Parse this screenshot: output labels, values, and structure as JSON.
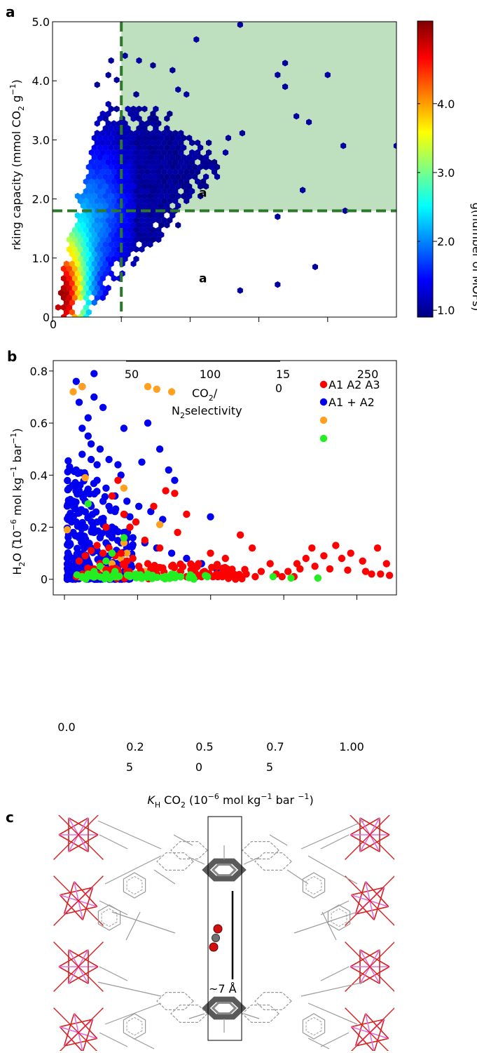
{
  "chart_data": [
    {
      "panel": "a",
      "type": "heatmap",
      "title": "",
      "xlabel": "",
      "ylabel": "rking capacity (mmol CO",
      "ylabel_sub": "2",
      "ylabel_unit": " g",
      "ylabel_sup": "−1",
      "ylabel_close": ")",
      "ylim": [
        0,
        5.0
      ],
      "xlim": [
        0,
        550
      ],
      "x_tick_labels": [
        {
          "x": 0,
          "label": "0"
        }
      ],
      "x_tick_positions": [
        0,
        110,
        220,
        330,
        440
      ],
      "y_tick_labels": [
        {
          "y": 0,
          "label": "0"
        },
        {
          "y": 1,
          "label": "1.0"
        },
        {
          "y": 2,
          "label": "2.0"
        },
        {
          "y": 3,
          "label": "3.0"
        },
        {
          "y": 4,
          "label": "4.0"
        },
        {
          "y": 5,
          "label": "5.0"
        }
      ],
      "threshold_x": 110,
      "threshold_y": 1.8,
      "shaded_region": {
        "x": [
          110,
          550
        ],
        "y": [
          1.8,
          5.0
        ],
        "color": "#bfe0bf"
      },
      "threshold_color": "#2a7a2a",
      "annotations": [
        {
          "text": "a",
          "x": 105,
          "y": 2.05
        },
        {
          "text": "a",
          "x": 105,
          "y": 0.6
        }
      ],
      "colorbar": {
        "label": "g(number of MOFs)",
        "range": [
          0.9,
          5.2
        ],
        "ticks": [
          {
            "value": 1.0,
            "label": "1.0"
          },
          {
            "value": 2.0,
            "label": "2.0"
          },
          {
            "value": 3.0,
            "label": "3.0"
          },
          {
            "value": 4.0,
            "label": "4.0"
          }
        ],
        "colors": [
          "#00007f",
          "#0000ff",
          "#0080ff",
          "#00ffff",
          "#80ff80",
          "#ffff00",
          "#ff8000",
          "#ff0000",
          "#7f0000"
        ]
      }
    },
    {
      "panel": "b",
      "type": "scatter",
      "title": "",
      "xlabel_italic": "K",
      "xlabel_sub": "H",
      "xlabel_rest": " CO",
      "xlabel_sub2": "2",
      "xlabel_unit": " (10",
      "xlabel_sup": "−6",
      "xlabel_tail": " mol kg",
      "xlabel_sup2": "−1",
      "xlabel_tail2": " bar ",
      "xlabel_sup3": "−1",
      "xlabel_close": ")",
      "ylabel_pre": "H",
      "ylabel_sub": "2",
      "ylabel_rest": "O (10",
      "ylabel_sup": "−6",
      "ylabel_tail": " mol kg",
      "ylabel_sup2": "−1",
      "ylabel_tail2": " bar",
      "ylabel_sup3": "−1",
      "ylabel_close": ")",
      "ylim": [
        -0.06,
        0.84
      ],
      "xlim": [
        -0.18,
        1.15
      ],
      "y_tick_labels": [
        {
          "y": 0,
          "label": "0"
        },
        {
          "y": 0.2,
          "label": "0.2"
        },
        {
          "y": 0.4,
          "label": "0.4"
        },
        {
          "y": 0.6,
          "label": "0.6"
        },
        {
          "y": 0.8,
          "label": "0.8"
        }
      ],
      "x_tick_positions": [
        0,
        0.25,
        0.5,
        0.75,
        1.0
      ],
      "x_tick_labels": [
        {
          "label": "0.0",
          "sub": ""
        },
        {
          "label": "0.2",
          "sub": "5"
        },
        {
          "label": "0.5",
          "sub": "0"
        },
        {
          "label": "0.7",
          "sub": "5"
        },
        {
          "label": "1.00",
          "sub": ""
        }
      ],
      "top_axis_labels": [
        {
          "label": "50",
          "sub": ""
        },
        {
          "label": "100",
          "sub": ""
        },
        {
          "label": "15",
          "sub": "0"
        },
        {
          "label": "250",
          "sub": ""
        }
      ],
      "top_axis_title": "CO",
      "top_axis_title_sub": "2",
      "top_axis_title_rest": "/",
      "top_axis_title2_pre": "N",
      "top_axis_title2_sub": "2",
      "top_axis_title2_rest": "selectivity",
      "series": [
        {
          "name": "A1 A2 A3",
          "color": "#ff0000",
          "points": [
            [
              0.82,
              0.12
            ],
            [
              0.9,
              0.13
            ],
            [
              1.04,
              0.12
            ],
            [
              0.95,
              0.1
            ],
            [
              0.86,
              0.09
            ],
            [
              0.92,
              0.08
            ],
            [
              0.99,
              0.07
            ],
            [
              1.07,
              0.06
            ],
            [
              0.8,
              0.08
            ],
            [
              0.77,
              0.06
            ],
            [
              0.83,
              0.05
            ],
            [
              0.88,
              0.04
            ],
            [
              0.94,
              0.035
            ],
            [
              1.0,
              0.03
            ],
            [
              1.05,
              0.02
            ],
            [
              1.08,
              0.015
            ],
            [
              0.78,
              0.04
            ],
            [
              0.74,
              0.03
            ],
            [
              0.7,
              0.02
            ],
            [
              0.65,
              0.03
            ],
            [
              0.6,
              0.02
            ],
            [
              0.55,
              0.03
            ],
            [
              0.5,
              0.02
            ],
            [
              0.46,
              0.03
            ],
            [
              0.42,
              0.02
            ],
            [
              0.38,
              0.03
            ],
            [
              0.35,
              0.05
            ],
            [
              0.3,
              0.04
            ],
            [
              0.27,
              0.06
            ],
            [
              0.24,
              0.05
            ],
            [
              0.22,
              0.08
            ],
            [
              0.2,
              0.07
            ],
            [
              0.18,
              0.1
            ],
            [
              0.16,
              0.09
            ],
            [
              0.14,
              0.12
            ],
            [
              0.12,
              0.1
            ],
            [
              0.1,
              0.13
            ],
            [
              0.08,
              0.11
            ],
            [
              0.06,
              0.09
            ],
            [
              0.04,
              0.07
            ],
            [
              0.17,
              0.38
            ],
            [
              0.15,
              0.32
            ],
            [
              0.13,
              0.2
            ],
            [
              0.33,
              0.34
            ],
            [
              0.36,
              0.33
            ],
            [
              0.4,
              0.25
            ],
            [
              0.23,
              0.22
            ],
            [
              0.26,
              0.15
            ],
            [
              0.31,
              0.12
            ],
            [
              0.37,
              0.18
            ],
            [
              0.48,
              0.1
            ],
            [
              0.58,
              0.17
            ],
            [
              0.62,
              0.12
            ],
            [
              0.68,
              0.06
            ],
            [
              0.53,
              0.08
            ],
            [
              0.44,
              0.06
            ],
            [
              0.21,
              0.2
            ],
            [
              0.19,
              0.25
            ],
            [
              0.29,
              0.28
            ],
            [
              0.11,
              0.06
            ],
            [
              0.09,
              0.04
            ],
            [
              0.07,
              0.03
            ],
            [
              0.05,
              0.02
            ],
            [
              0.03,
              0.01
            ],
            [
              0.15,
              0.04
            ],
            [
              0.2,
              0.03
            ],
            [
              0.25,
              0.02
            ],
            [
              0.3,
              0.02
            ],
            [
              0.35,
              0.01
            ],
            [
              0.4,
              0.01
            ],
            [
              0.45,
              0.01
            ],
            [
              0.52,
              0.01
            ],
            [
              0.57,
              0.01
            ],
            [
              0.63,
              0.01
            ],
            [
              0.72,
              0.01
            ],
            [
              0.76,
              0.01
            ],
            [
              1.02,
              0.02
            ]
          ]
        },
        {
          "name": "A1 + A2",
          "color": "#0000ee",
          "points": [
            [
              0.03,
              0.76
            ],
            [
              0.05,
              0.74
            ],
            [
              0.09,
              0.79
            ],
            [
              0.04,
              0.68
            ],
            [
              0.07,
              0.62
            ],
            [
              0.12,
              0.66
            ],
            [
              0.19,
              0.58
            ],
            [
              0.25,
              0.45
            ],
            [
              0.27,
              0.6
            ],
            [
              0.31,
              0.5
            ],
            [
              0.34,
              0.42
            ],
            [
              0.36,
              0.38
            ],
            [
              0.05,
              0.58
            ],
            [
              0.08,
              0.52
            ],
            [
              0.11,
              0.5
            ],
            [
              0.14,
              0.46
            ],
            [
              0.03,
              0.42
            ],
            [
              0.06,
              0.4
            ],
            [
              0.1,
              0.38
            ],
            [
              0.13,
              0.35
            ],
            [
              0.16,
              0.32
            ],
            [
              0.2,
              0.3
            ],
            [
              0.24,
              0.28
            ],
            [
              0.28,
              0.26
            ],
            [
              0.32,
              0.23
            ],
            [
              0.48,
              0.24
            ],
            [
              0.02,
              0.3
            ],
            [
              0.04,
              0.26
            ],
            [
              0.07,
              0.24
            ],
            [
              0.1,
              0.22
            ],
            [
              0.15,
              0.2
            ],
            [
              0.19,
              0.18
            ],
            [
              0.22,
              0.16
            ],
            [
              0.26,
              0.14
            ],
            [
              0.3,
              0.12
            ],
            [
              0.35,
              0.1
            ],
            [
              0.4,
              0.08
            ],
            [
              0.45,
              0.06
            ],
            [
              0.5,
              0.04
            ],
            [
              0.55,
              0.03
            ],
            [
              0.02,
              0.18
            ],
            [
              0.04,
              0.16
            ],
            [
              0.06,
              0.14
            ],
            [
              0.08,
              0.12
            ],
            [
              0.1,
              0.11
            ],
            [
              0.12,
              0.1
            ],
            [
              0.14,
              0.09
            ],
            [
              0.02,
              0.08
            ],
            [
              0.03,
              0.06
            ],
            [
              0.05,
              0.05
            ],
            [
              0.07,
              0.04
            ],
            [
              0.09,
              0.03
            ],
            [
              0.11,
              0.02
            ],
            [
              0.02,
              0.02
            ],
            [
              0.04,
              0.01
            ],
            [
              0.06,
              0.01
            ],
            [
              0.08,
              0.01
            ],
            [
              0.13,
              0.01
            ],
            [
              0.18,
              0.01
            ],
            [
              0.23,
              0.01
            ],
            [
              0.28,
              0.01
            ],
            [
              0.33,
              0.01
            ],
            [
              0.38,
              0.01
            ],
            [
              0.43,
              0.01
            ],
            [
              0.06,
              0.2
            ],
            [
              0.09,
              0.18
            ],
            [
              0.11,
              0.16
            ],
            [
              0.13,
              0.14
            ],
            [
              0.17,
              0.44
            ],
            [
              0.18,
              0.4
            ],
            [
              0.08,
              0.46
            ],
            [
              0.1,
              0.44
            ],
            [
              0.12,
              0.3
            ],
            [
              0.14,
              0.28
            ],
            [
              0.16,
              0.26
            ],
            [
              0.21,
              0.24
            ],
            [
              0.06,
              0.3
            ],
            [
              0.04,
              0.34
            ],
            [
              0.05,
              0.48
            ],
            [
              0.07,
              0.55
            ],
            [
              0.09,
              0.7
            ],
            [
              0.03,
              0.22
            ],
            [
              0.08,
              0.28
            ],
            [
              0.12,
              0.22
            ],
            [
              0.15,
              0.16
            ],
            [
              0.18,
              0.14
            ],
            [
              0.2,
              0.12
            ]
          ]
        },
        {
          "name": "",
          "color": "#ffa020",
          "points": [
            [
              0.02,
              0.72
            ],
            [
              0.05,
              0.74
            ],
            [
              0.27,
              0.74
            ],
            [
              0.3,
              0.73
            ],
            [
              0.35,
              0.72
            ],
            [
              0.06,
              0.39
            ],
            [
              0.19,
              0.35
            ],
            [
              0.31,
              0.21
            ],
            [
              0.19,
              0.14
            ],
            [
              0.2,
              0.1
            ],
            [
              0.18,
              0.08
            ],
            [
              0.15,
              0.06
            ],
            [
              0.12,
              0.04
            ],
            [
              0.1,
              0.02
            ],
            [
              0.04,
              0.01
            ],
            [
              0.0,
              0.19
            ],
            [
              0.08,
              0.03
            ],
            [
              0.14,
              0.02
            ],
            [
              0.22,
              0.02
            ],
            [
              0.26,
              0.03
            ]
          ]
        },
        {
          "name": "",
          "color": "#22ee22",
          "points": [
            [
              0.07,
              0.29
            ],
            [
              0.19,
              0.16
            ],
            [
              0.15,
              0.1
            ],
            [
              0.13,
              0.07
            ],
            [
              0.11,
              0.05
            ],
            [
              0.09,
              0.03
            ],
            [
              0.07,
              0.02
            ],
            [
              0.05,
              0.01
            ],
            [
              0.13,
              0.02
            ],
            [
              0.17,
              0.01
            ],
            [
              0.21,
              0.01
            ],
            [
              0.25,
              0.01
            ],
            [
              0.29,
              0.01
            ],
            [
              0.33,
              0.01
            ],
            [
              0.38,
              0.01
            ],
            [
              0.42,
              0.01
            ],
            [
              0.47,
              0.01
            ],
            [
              0.69,
              0.01
            ],
            [
              0.75,
              0.005
            ],
            [
              0.84,
              0.005
            ],
            [
              0.35,
              0.02
            ],
            [
              0.27,
              0.02
            ],
            [
              0.23,
              0.02
            ],
            [
              0.16,
              0.03
            ]
          ]
        }
      ],
      "legend_position": "top-right"
    },
    {
      "panel": "c",
      "type": "diagram",
      "annotation": "~7 Å"
    }
  ],
  "panel_labels": {
    "a": "a",
    "b": "b",
    "c": "c"
  }
}
